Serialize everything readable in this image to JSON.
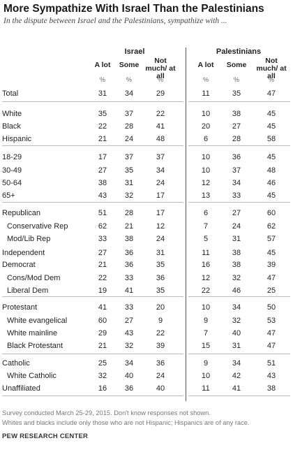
{
  "header": {
    "title": "More Sympathize With Israel Than the Palestinians",
    "subtitle": "In the dispute between Israel and the Palestinians, sympathize with ..."
  },
  "chart_data": {
    "type": "table",
    "groups": [
      "Israel",
      "Palestinians"
    ],
    "columns": [
      "A lot",
      "Some",
      "Not much/ at all",
      "A lot",
      "Some",
      "Not much/ at all"
    ],
    "unit": "%",
    "rows": [
      {
        "label": "Total",
        "values": [
          31,
          34,
          29,
          11,
          35,
          47
        ]
      },
      {
        "label": "White",
        "values": [
          35,
          37,
          22,
          10,
          38,
          45
        ]
      },
      {
        "label": "Black",
        "values": [
          22,
          28,
          41,
          20,
          27,
          45
        ]
      },
      {
        "label": "Hispanic",
        "values": [
          21,
          24,
          48,
          6,
          28,
          58
        ]
      },
      {
        "label": "18-29",
        "values": [
          17,
          37,
          37,
          10,
          36,
          45
        ]
      },
      {
        "label": "30-49",
        "values": [
          27,
          35,
          34,
          10,
          37,
          48
        ]
      },
      {
        "label": "50-64",
        "values": [
          38,
          31,
          24,
          12,
          34,
          46
        ]
      },
      {
        "label": "65+",
        "values": [
          43,
          32,
          17,
          13,
          33,
          45
        ]
      },
      {
        "label": "Republican",
        "values": [
          51,
          28,
          17,
          6,
          27,
          60
        ]
      },
      {
        "label": "Conservative Rep",
        "values": [
          62,
          21,
          12,
          7,
          24,
          62
        ]
      },
      {
        "label": "Mod/Lib Rep",
        "values": [
          33,
          38,
          24,
          5,
          31,
          57
        ]
      },
      {
        "label": "Independent",
        "values": [
          27,
          36,
          31,
          11,
          38,
          45
        ]
      },
      {
        "label": "Democrat",
        "values": [
          21,
          36,
          35,
          16,
          38,
          39
        ]
      },
      {
        "label": "Cons/Mod Dem",
        "values": [
          22,
          33,
          36,
          12,
          32,
          47
        ]
      },
      {
        "label": "Liberal Dem",
        "values": [
          19,
          41,
          35,
          22,
          46,
          25
        ]
      },
      {
        "label": "Protestant",
        "values": [
          41,
          33,
          20,
          10,
          34,
          50
        ]
      },
      {
        "label": "White evangelical",
        "values": [
          60,
          27,
          9,
          9,
          32,
          53
        ]
      },
      {
        "label": "White mainline",
        "values": [
          29,
          43,
          22,
          7,
          40,
          47
        ]
      },
      {
        "label": "Black Protestant",
        "values": [
          21,
          32,
          39,
          15,
          31,
          47
        ]
      },
      {
        "label": "Catholic",
        "values": [
          25,
          34,
          36,
          9,
          34,
          51
        ]
      },
      {
        "label": "White Catholic",
        "values": [
          32,
          40,
          24,
          10,
          42,
          43
        ]
      },
      {
        "label": "Unaffiliated",
        "values": [
          16,
          36,
          40,
          11,
          41,
          38
        ]
      }
    ]
  },
  "footer": {
    "note1": "Survey conducted March 25-29, 2015. Don't know responses not shown.",
    "note2": "Whites and blacks include only those who are not Hispanic; Hispanics are of any race.",
    "source": "PEW RESEARCH CENTER"
  }
}
